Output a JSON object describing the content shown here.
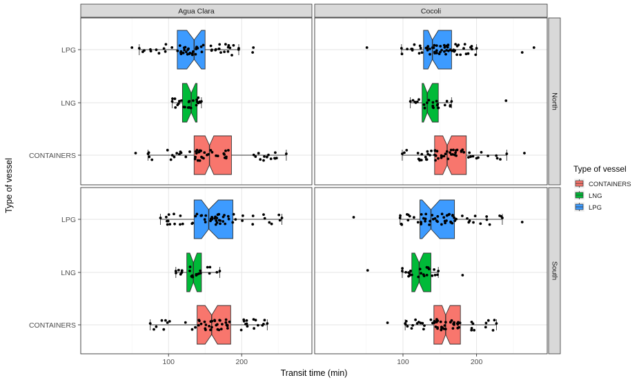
{
  "chart_data": {
    "type": "box",
    "xlabel": "Transit time (min)",
    "ylabel": "Type of vessel",
    "xticks": [
      100,
      200
    ],
    "categories": [
      "LPG",
      "LNG",
      "CONTAINERS"
    ],
    "columns": [
      "Agua Clara",
      "Cocoli"
    ],
    "rows": [
      "North",
      "South"
    ],
    "legend": {
      "title": "Type of vessel",
      "position": "right",
      "items": [
        {
          "label": "CONTAINERS",
          "color": "#F8766D"
        },
        {
          "label": "LNG",
          "color": "#00BA38"
        },
        {
          "label": "LPG",
          "color": "#3D9BFF"
        }
      ]
    },
    "panels": [
      {
        "col": "Agua Clara",
        "row": "North",
        "boxes": [
          {
            "category": "LPG",
            "whisker_low": 60,
            "q1": 112,
            "median": 135,
            "q3": 150,
            "whisker_high": 196,
            "notch": [
              125,
              145
            ],
            "outliers": [
              50,
              215,
              216
            ]
          },
          {
            "category": "LNG",
            "whisker_low": 105,
            "q1": 119,
            "median": 131,
            "q3": 139,
            "whisker_high": 145,
            "notch": [
              125,
              137
            ],
            "outliers": []
          },
          {
            "category": "CONTAINERS",
            "whisker_low": 72,
            "q1": 135,
            "median": 156,
            "q3": 186,
            "whisker_high": 261,
            "notch": [
              150,
              162
            ],
            "outliers": [
              55
            ]
          }
        ]
      },
      {
        "col": "Cocoli",
        "row": "North",
        "boxes": [
          {
            "category": "LPG",
            "whisker_low": 98,
            "q1": 128,
            "median": 140,
            "q3": 166,
            "whisker_high": 200,
            "notch": [
              134,
              148
            ],
            "outliers": [
              51,
              262,
              278
            ]
          },
          {
            "category": "LNG",
            "whisker_low": 110,
            "q1": 126,
            "median": 133,
            "q3": 148,
            "whisker_high": 166,
            "notch": [
              128,
              140
            ],
            "outliers": [
              240
            ]
          },
          {
            "category": "CONTAINERS",
            "whisker_low": 99,
            "q1": 143,
            "median": 160,
            "q3": 186,
            "whisker_high": 241,
            "notch": [
              154,
              166
            ],
            "outliers": [
              265
            ]
          }
        ]
      },
      {
        "col": "Agua Clara",
        "row": "South",
        "boxes": [
          {
            "category": "LPG",
            "whisker_low": 89,
            "q1": 135,
            "median": 155,
            "q3": 188,
            "whisker_high": 255,
            "notch": [
              145,
              168
            ],
            "outliers": []
          },
          {
            "category": "LNG",
            "whisker_low": 110,
            "q1": 125,
            "median": 134,
            "q3": 145,
            "whisker_high": 170,
            "notch": [
              129,
              139
            ],
            "outliers": []
          },
          {
            "category": "CONTAINERS",
            "whisker_low": 75,
            "q1": 139,
            "median": 159,
            "q3": 185,
            "whisker_high": 235,
            "notch": [
              150,
              167
            ],
            "outliers": []
          }
        ]
      },
      {
        "col": "Cocoli",
        "row": "South",
        "boxes": [
          {
            "category": "LPG",
            "whisker_low": 96,
            "q1": 123,
            "median": 138,
            "q3": 170,
            "whisker_high": 235,
            "notch": [
              126,
              150
            ],
            "outliers": [
              33,
              262
            ]
          },
          {
            "category": "LNG",
            "whisker_low": 99,
            "q1": 112,
            "median": 122,
            "q3": 138,
            "whisker_high": 148,
            "notch": [
              116,
              128
            ],
            "outliers": [
              52,
              181
            ]
          },
          {
            "category": "CONTAINERS",
            "whisker_low": 103,
            "q1": 142,
            "median": 158,
            "q3": 178,
            "whisker_high": 227,
            "notch": [
              153,
              164
            ],
            "outliers": [
              79
            ]
          }
        ]
      }
    ]
  }
}
